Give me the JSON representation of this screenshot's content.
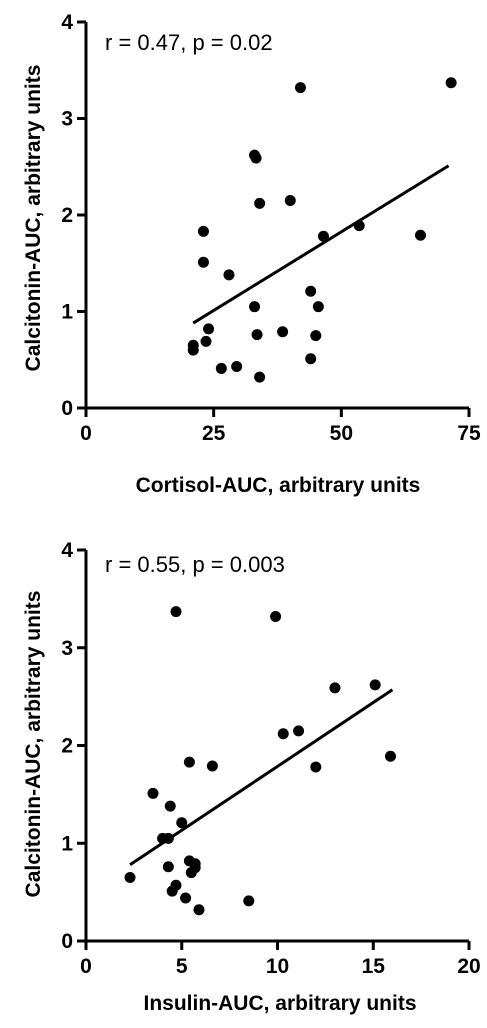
{
  "chart_data": [
    {
      "type": "scatter",
      "annotation": "r = 0.47, p = 0.02",
      "xlabel": "Cortisol-AUC, arbitrary units",
      "ylabel": "Calcitonin-AUC, arbitrary units",
      "xlim": [
        0,
        75
      ],
      "ylim": [
        0,
        4
      ],
      "xticks": [
        "0",
        "25",
        "50",
        "75"
      ],
      "yticks": [
        "0",
        "1",
        "2",
        "3",
        "4"
      ],
      "points": [
        [
          21,
          0.65
        ],
        [
          21,
          0.6
        ],
        [
          23,
          1.83
        ],
        [
          23,
          1.51
        ],
        [
          23.5,
          0.69
        ],
        [
          24,
          0.82
        ],
        [
          26.5,
          0.41
        ],
        [
          28,
          1.38
        ],
        [
          29.5,
          0.43
        ],
        [
          33,
          2.62
        ],
        [
          33.3,
          2.59
        ],
        [
          33,
          1.05
        ],
        [
          33.5,
          0.76
        ],
        [
          34,
          2.12
        ],
        [
          34,
          0.32
        ],
        [
          38.5,
          0.79
        ],
        [
          40,
          2.15
        ],
        [
          42,
          3.32
        ],
        [
          44,
          1.21
        ],
        [
          44,
          0.51
        ],
        [
          45,
          0.75
        ],
        [
          45.5,
          1.05
        ],
        [
          46.5,
          1.78
        ],
        [
          53.5,
          1.89
        ],
        [
          65.5,
          1.79
        ],
        [
          71.5,
          3.37
        ]
      ],
      "fit_line": [
        [
          21,
          0.88
        ],
        [
          71,
          2.51
        ]
      ]
    },
    {
      "type": "scatter",
      "annotation": "r = 0.55, p = 0.003",
      "xlabel": "Insulin-AUC, arbitrary units",
      "ylabel": "Calcitonin-AUC, arbitrary units",
      "xlim": [
        0,
        20
      ],
      "ylim": [
        0,
        4
      ],
      "xticks": [
        "0",
        "5",
        "10",
        "15",
        "20"
      ],
      "yticks": [
        "0",
        "1",
        "2",
        "3",
        "4"
      ],
      "points": [
        [
          2.3,
          0.65
        ],
        [
          3.5,
          1.51
        ],
        [
          4.0,
          1.05
        ],
        [
          4.3,
          1.05
        ],
        [
          4.3,
          0.76
        ],
        [
          4.4,
          1.38
        ],
        [
          4.5,
          0.51
        ],
        [
          4.7,
          0.57
        ],
        [
          4.7,
          3.37
        ],
        [
          5.0,
          1.21
        ],
        [
          5.2,
          0.44
        ],
        [
          5.4,
          1.83
        ],
        [
          5.4,
          0.82
        ],
        [
          5.5,
          0.7
        ],
        [
          5.7,
          0.79
        ],
        [
          5.7,
          0.75
        ],
        [
          5.9,
          0.32
        ],
        [
          6.6,
          1.79
        ],
        [
          8.5,
          0.41
        ],
        [
          9.9,
          3.32
        ],
        [
          10.3,
          2.12
        ],
        [
          11.1,
          2.15
        ],
        [
          12.0,
          1.78
        ],
        [
          13.0,
          2.59
        ],
        [
          15.1,
          2.62
        ],
        [
          15.9,
          1.89
        ]
      ],
      "fit_line": [
        [
          2.3,
          0.78
        ],
        [
          16.0,
          2.57
        ]
      ]
    }
  ]
}
